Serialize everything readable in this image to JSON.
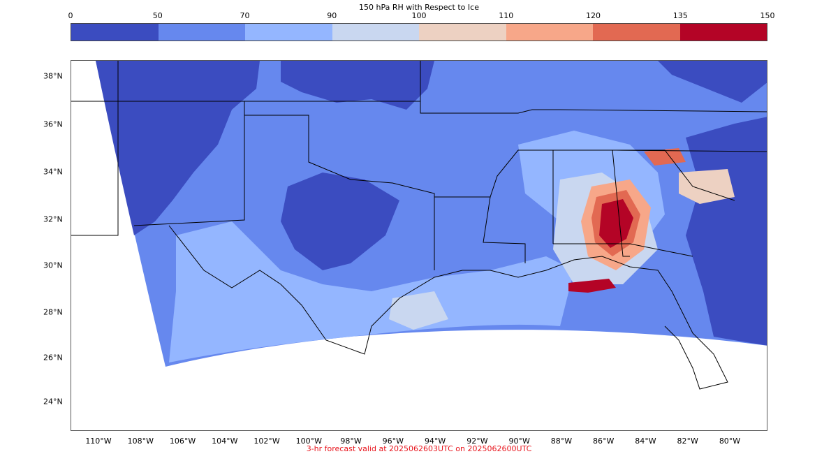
{
  "colorbar": {
    "title": "150 hPa RH with Respect to Ice",
    "ticks": [
      "0",
      "50",
      "70",
      "90",
      "100",
      "110",
      "120",
      "135",
      "150"
    ],
    "colors": [
      "#3b4cc0",
      "#6688ee",
      "#94b6ff",
      "#c9d7f0",
      "#edd1c2",
      "#f7a789",
      "#e26952",
      "#b40426"
    ]
  },
  "map": {
    "lat_labels": [
      "38°N",
      "36°N",
      "34°N",
      "32°N",
      "30°N",
      "28°N",
      "26°N",
      "24°N"
    ],
    "lon_labels": [
      "110°W",
      "108°W",
      "106°W",
      "104°W",
      "102°W",
      "100°W",
      "98°W",
      "96°W",
      "94°W",
      "92°W",
      "90°W",
      "88°W",
      "86°W",
      "84°W",
      "82°W",
      "80°W"
    ]
  },
  "footer": "3-hr forecast valid at 2025062603UTC on 2025062600UTC"
}
